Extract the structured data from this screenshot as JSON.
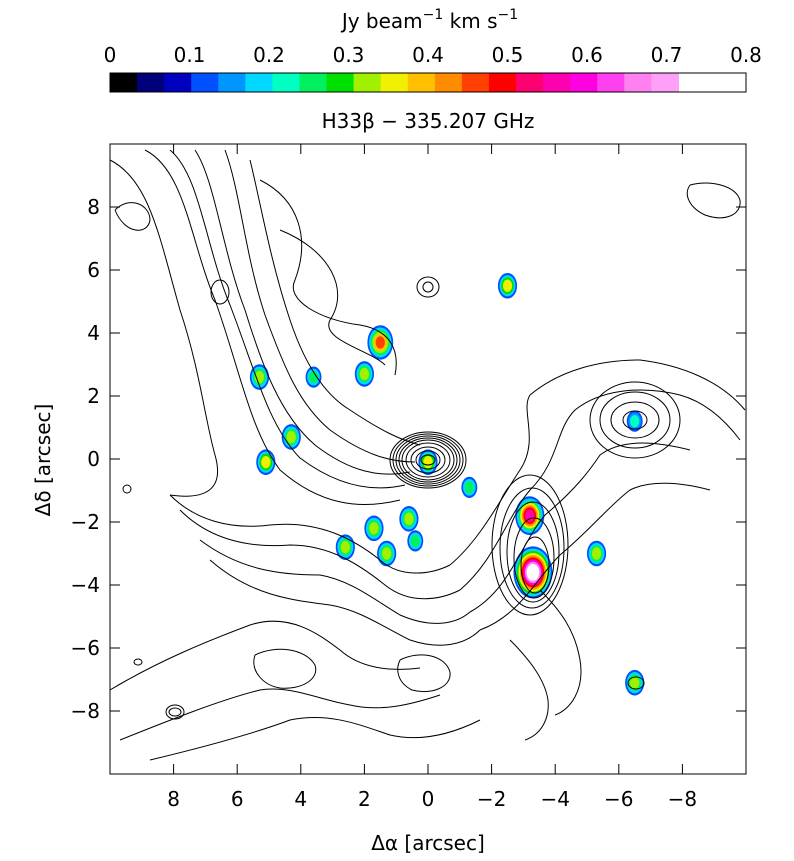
{
  "chart_data": {
    "type": "heatmap",
    "title": "H33β − 335.207 GHz",
    "colorbar": {
      "label_base": "Jy beam",
      "label_exp1": "−1",
      "label_mid": " km s",
      "label_exp2": "−1",
      "range": [
        0,
        0.8
      ],
      "ticks": [
        "0",
        "0.1",
        "0.2",
        "0.3",
        "0.4",
        "0.5",
        "0.6",
        "0.7",
        "0.8"
      ],
      "colors": [
        "#000000",
        "#00007a",
        "#0000c0",
        "#0050ff",
        "#0096ff",
        "#00d8ff",
        "#00ffc0",
        "#00f060",
        "#00e000",
        "#a0f000",
        "#f0f000",
        "#ffc000",
        "#ff8c00",
        "#ff4000",
        "#ff0000",
        "#ff0070",
        "#ff00b0",
        "#ff00e0",
        "#ff40f0",
        "#ff80f0",
        "#ffa0f8",
        "#ffffff"
      ]
    },
    "xlabel": "Δα [arcsec]",
    "ylabel": "Δδ [arcsec]",
    "xlim": [
      10,
      -10
    ],
    "ylim": [
      -10,
      10
    ],
    "xticks": [
      "8",
      "6",
      "4",
      "2",
      "0",
      "−2",
      "−4",
      "−6",
      "−8"
    ],
    "xtick_values": [
      8,
      6,
      4,
      2,
      0,
      -2,
      -4,
      -6,
      -8
    ],
    "yticks": [
      "8",
      "6",
      "4",
      "2",
      "0",
      "−2",
      "−4",
      "−6",
      "−8"
    ],
    "ytick_values": [
      8,
      6,
      4,
      2,
      0,
      -2,
      -4,
      -6,
      -8
    ],
    "emission_peaks": [
      {
        "x": -3.3,
        "y": -3.6,
        "value": 0.8
      },
      {
        "x": -3.2,
        "y": -1.8,
        "value": 0.55
      },
      {
        "x": 0.0,
        "y": -0.1,
        "value": 0.35
      },
      {
        "x": 5.1,
        "y": -0.1,
        "value": 0.35
      },
      {
        "x": 5.3,
        "y": 2.6,
        "value": 0.3
      },
      {
        "x": 1.5,
        "y": 3.7,
        "value": 0.45
      },
      {
        "x": 0.6,
        "y": -1.9,
        "value": 0.3
      },
      {
        "x": 2.6,
        "y": -2.8,
        "value": 0.3
      },
      {
        "x": 0.4,
        "y": -2.6,
        "value": 0.25
      },
      {
        "x": -6.5,
        "y": -7.1,
        "value": 0.3
      },
      {
        "x": 2.0,
        "y": 2.7,
        "value": 0.3
      },
      {
        "x": 1.3,
        "y": -3.0,
        "value": 0.3
      },
      {
        "x": -1.3,
        "y": -0.9,
        "value": 0.25
      },
      {
        "x": -2.5,
        "y": 5.5,
        "value": 0.35
      },
      {
        "x": 1.7,
        "y": -2.2,
        "value": 0.3
      },
      {
        "x": -6.5,
        "y": 1.2,
        "value": 0.2
      },
      {
        "x": -5.3,
        "y": -3.0,
        "value": 0.3
      },
      {
        "x": 3.6,
        "y": 2.6,
        "value": 0.25
      },
      {
        "x": 4.3,
        "y": 0.7,
        "value": 0.3
      }
    ]
  }
}
